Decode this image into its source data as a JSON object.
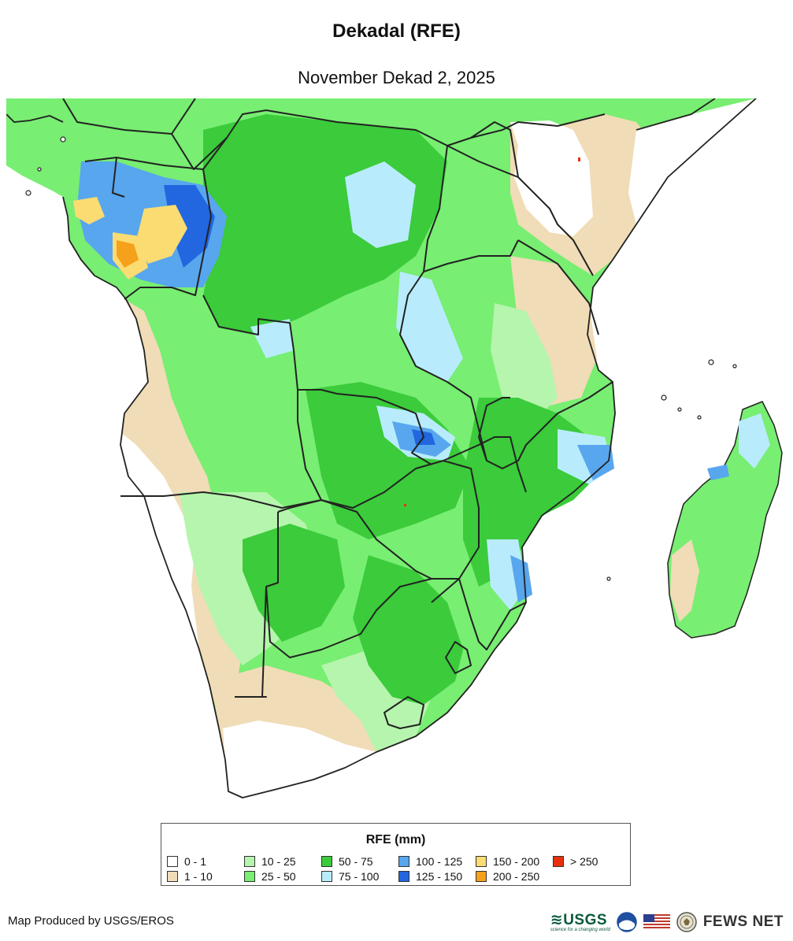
{
  "title": "Dekadal (RFE)",
  "subtitle": "November Dekad 2, 2025",
  "legend": {
    "title": "RFE (mm)",
    "items": [
      {
        "label": "0 - 1",
        "color": "#ffffff"
      },
      {
        "label": "1 - 10",
        "color": "#f0dcb6"
      },
      {
        "label": "10 - 25",
        "color": "#b6f5ae"
      },
      {
        "label": "25 - 50",
        "color": "#78ee72"
      },
      {
        "label": "50 - 75",
        "color": "#3bcb3b"
      },
      {
        "label": "75 - 100",
        "color": "#b8ecfc"
      },
      {
        "label": "100 - 125",
        "color": "#58a6ee"
      },
      {
        "label": "125 - 150",
        "color": "#2266e0"
      },
      {
        "label": "150 - 200",
        "color": "#fadc72"
      },
      {
        "label": "200 - 250",
        "color": "#f6a11c"
      },
      {
        "label": "> 250",
        "color": "#e8300e"
      }
    ]
  },
  "footer": {
    "credit": "Map Produced by USGS/EROS",
    "usgs_label": "≋USGS",
    "usgs_tagline": "science for a changing world",
    "fews_label": "FEWS NET",
    "logo_icons": [
      "usgs-logo",
      "noaa-icon",
      "us-flag-icon",
      "state-department-seal-icon"
    ]
  }
}
